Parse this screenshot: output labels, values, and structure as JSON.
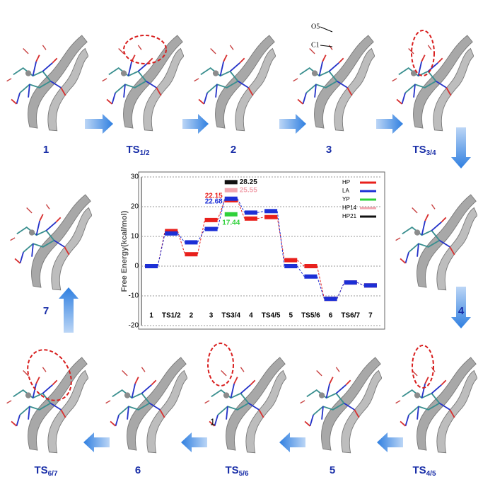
{
  "chart_data": {
    "type": "energy-levels",
    "ylabel": "Free Energy(kcal/mol)",
    "categories": [
      "1",
      "TS1/2",
      "2",
      "3",
      "TS3/4",
      "4",
      "TS4/5",
      "5",
      "TS5/6",
      "6",
      "TS6/7",
      "7"
    ],
    "ylim": [
      -20,
      30
    ],
    "yticks": [
      -20,
      -10,
      0,
      10,
      20,
      30
    ],
    "grid": true,
    "legend": "top-right",
    "series": [
      {
        "name": "HP",
        "color": "#e8201c",
        "values": [
          0,
          11.8,
          4,
          15.5,
          22.15,
          16,
          16.5,
          2,
          0,
          -11,
          -5.5,
          -6.5
        ],
        "value_labels": [
          null,
          null,
          null,
          null,
          "22.15",
          null,
          null,
          null,
          null,
          null,
          null,
          null
        ]
      },
      {
        "name": "LA",
        "color": "#1c2fd6",
        "values": [
          0,
          11,
          8,
          12.5,
          22.68,
          18,
          18.5,
          0,
          -3.5,
          -11,
          -5.5,
          -6.5
        ],
        "value_labels": [
          null,
          null,
          null,
          null,
          "22.68",
          null,
          null,
          null,
          null,
          null,
          null,
          null
        ]
      },
      {
        "name": "YP",
        "color": "#2fd13a",
        "values": [
          null,
          null,
          null,
          null,
          17.44,
          null,
          null,
          null,
          null,
          null,
          null,
          null
        ],
        "value_labels": [
          null,
          null,
          null,
          null,
          "17.44",
          null,
          null,
          null,
          null,
          null,
          null,
          null
        ]
      },
      {
        "name": "HP14",
        "color": "#f2a6b0",
        "values": [
          null,
          null,
          null,
          null,
          25.55,
          null,
          null,
          null,
          null,
          null,
          null,
          null
        ],
        "value_labels": [
          null,
          null,
          null,
          null,
          "25.55",
          null,
          null,
          null,
          null,
          null,
          null,
          null
        ]
      },
      {
        "name": "HP21",
        "color": "#111111",
        "values": [
          null,
          null,
          null,
          null,
          28.25,
          null,
          null,
          null,
          null,
          null,
          null,
          null
        ],
        "value_labels": [
          null,
          null,
          null,
          null,
          "28.25",
          null,
          null,
          null,
          null,
          null,
          null,
          null
        ]
      }
    ]
  },
  "panels": [
    {
      "base": "1",
      "sub": ""
    },
    {
      "base": "TS",
      "sub": "1/2"
    },
    {
      "base": "2",
      "sub": ""
    },
    {
      "base": "3",
      "sub": ""
    },
    {
      "base": "TS",
      "sub": "3/4"
    },
    {
      "base": "4",
      "sub": ""
    },
    {
      "base": "TS",
      "sub": "4/5"
    },
    {
      "base": "5",
      "sub": ""
    },
    {
      "base": "TS",
      "sub": "5/6"
    },
    {
      "base": "6",
      "sub": ""
    },
    {
      "base": "TS",
      "sub": "6/7"
    },
    {
      "base": "7",
      "sub": ""
    }
  ],
  "annotations": [
    "O5",
    "C1",
    "1"
  ]
}
